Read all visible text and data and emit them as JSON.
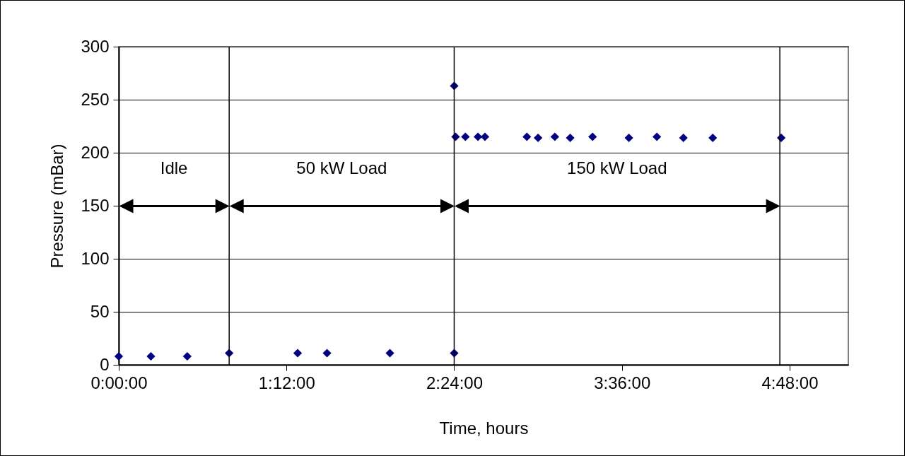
{
  "chart_data": {
    "type": "scatter",
    "xlabel": "Time, hours",
    "ylabel": "Pressure (mBar)",
    "series": [
      {
        "color": "#000080",
        "x": [
          0,
          0.23,
          0.49,
          0.79,
          1.28,
          1.49,
          1.94,
          2.4,
          2.4,
          2.41,
          2.48,
          2.57,
          2.62,
          2.92,
          3.0,
          3.12,
          3.23,
          3.39,
          3.65,
          3.85,
          4.04,
          4.25,
          4.74
        ],
        "values": [
          8,
          8,
          8,
          11,
          11,
          11,
          11,
          11,
          263,
          215,
          215,
          215,
          215,
          215,
          214,
          215,
          214,
          215,
          214,
          215,
          214,
          214,
          214
        ]
      }
    ],
    "marker": "diamond",
    "grid": "y",
    "xlim": [
      0,
      5.22
    ],
    "xticks": [
      {
        "value": 0,
        "label": "0:00:00"
      },
      {
        "value": 1.2,
        "label": "1:12:00"
      },
      {
        "value": 2.4,
        "label": "2:24:00"
      },
      {
        "value": 3.6,
        "label": "3:36:00"
      },
      {
        "value": 4.8,
        "label": "4:48:00"
      }
    ],
    "ylim": [
      0,
      300
    ],
    "yticks": [
      0,
      50,
      100,
      150,
      200,
      250,
      300
    ],
    "ref_lines": [
      {
        "axis": "x",
        "value": 0.79,
        "color": "#000000"
      },
      {
        "axis": "x",
        "value": 2.4,
        "color": "#000000"
      },
      {
        "axis": "x",
        "value": 4.73,
        "color": "#000000"
      }
    ],
    "annotations": [
      "Idle",
      "50 kW Load",
      "150 kW Load"
    ]
  }
}
